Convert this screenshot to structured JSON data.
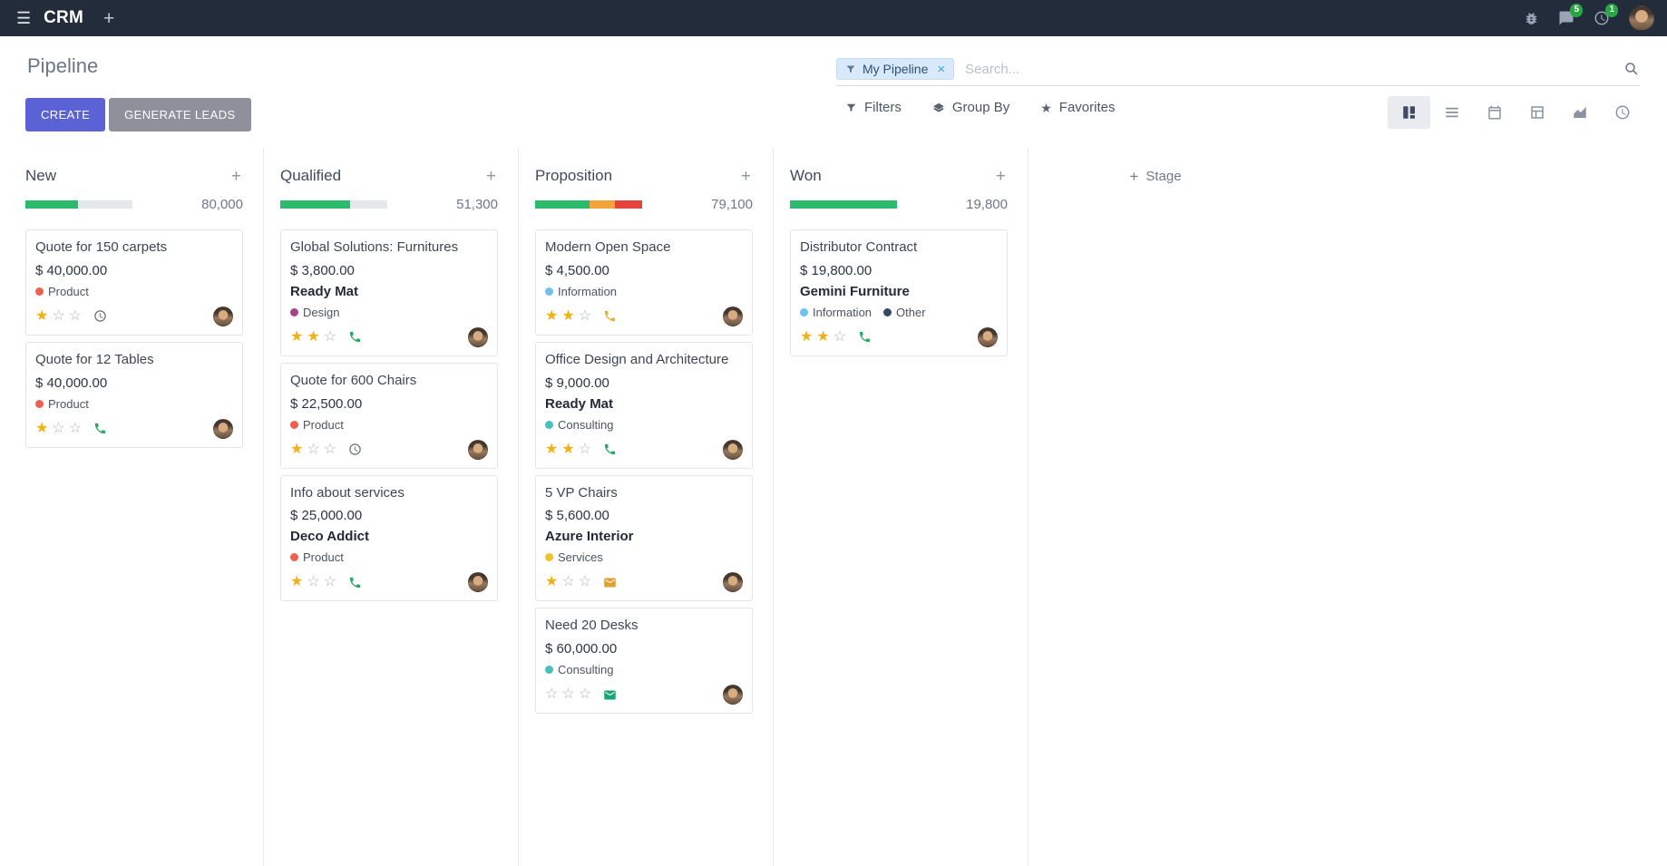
{
  "colors": {
    "accent": "#5b62d6",
    "secondary_button": "#8e919b",
    "navbar_bg": "#222c3a",
    "success": "#2cba6c",
    "warning": "#f2a33a",
    "danger": "#e5443d",
    "progress_track": "#e5e8eb",
    "star_gold": "#f3b012",
    "badge_green": "#28a745",
    "facet_bg": "#d8eafa"
  },
  "icons": {
    "menu": "☰",
    "plus": "+",
    "facet_remove": "×",
    "add_column": "+",
    "star_filled": "★",
    "star_empty": "☆"
  },
  "navbar": {
    "app_name": "CRM",
    "messages_badge": "5",
    "activities_badge": "1"
  },
  "control_panel": {
    "title": "Pipeline",
    "search": {
      "facet_label": "My Pipeline",
      "placeholder": "Search..."
    },
    "buttons": {
      "create": "CREATE",
      "generate_leads": "GENERATE LEADS"
    },
    "filters_label": "Filters",
    "group_by_label": "Group By",
    "favorites_label": "Favorites",
    "views": [
      "kanban",
      "list",
      "calendar",
      "pivot",
      "graph",
      "activity"
    ],
    "active_view": "kanban"
  },
  "board": {
    "add_stage_label": "Stage",
    "columns": [
      {
        "name": "New",
        "total": "80,000",
        "progress": [
          {
            "color": "success",
            "pct": 49
          }
        ],
        "cards": [
          {
            "title": "Quote for 150 carpets",
            "amount": "$ 40,000.00",
            "tags": [
              {
                "label": "Product",
                "color": "#f06050"
              }
            ],
            "stars": 1,
            "activity": {
              "type": "clock",
              "color": "#6a7075"
            }
          },
          {
            "title": "Quote for 12 Tables",
            "amount": "$ 40,000.00",
            "tags": [
              {
                "label": "Product",
                "color": "#f06050"
              }
            ],
            "stars": 1,
            "activity": {
              "type": "phone",
              "color": "#2aa85e"
            }
          }
        ]
      },
      {
        "name": "Qualified",
        "total": "51,300",
        "progress": [
          {
            "color": "success",
            "pct": 65
          }
        ],
        "cards": [
          {
            "title": "Global Solutions: Furnitures",
            "amount": "$ 3,800.00",
            "partner": "Ready Mat",
            "tags": [
              {
                "label": "Design",
                "color": "#a24689"
              }
            ],
            "stars": 2,
            "activity": {
              "type": "phone",
              "color": "#2aa85e"
            }
          },
          {
            "title": "Quote for 600 Chairs",
            "amount": "$ 22,500.00",
            "tags": [
              {
                "label": "Product",
                "color": "#f06050"
              }
            ],
            "stars": 1,
            "activity": {
              "type": "clock",
              "color": "#6a7075"
            }
          },
          {
            "title": "Info about services",
            "amount": "$ 25,000.00",
            "partner": "Deco Addict",
            "tags": [
              {
                "label": "Product",
                "color": "#f06050"
              }
            ],
            "stars": 1,
            "activity": {
              "type": "phone",
              "color": "#2aa85e"
            }
          }
        ]
      },
      {
        "name": "Proposition",
        "total": "79,100",
        "progress": [
          {
            "color": "success",
            "pct": 51
          },
          {
            "color": "warning",
            "pct": 24
          },
          {
            "color": "danger",
            "pct": 25
          }
        ],
        "cards": [
          {
            "title": "Modern Open Space",
            "amount": "$ 4,500.00",
            "tags": [
              {
                "label": "Information",
                "color": "#6cc1ed"
              }
            ],
            "stars": 2,
            "activity": {
              "type": "phone",
              "color": "#e9b02e"
            }
          },
          {
            "title": "Office Design and Architecture",
            "amount": "$ 9,000.00",
            "partner": "Ready Mat",
            "tags": [
              {
                "label": "Consulting",
                "color": "#45c2bb"
              }
            ],
            "stars": 2,
            "activity": {
              "type": "phone",
              "color": "#2aa85e"
            }
          },
          {
            "title": "5 VP Chairs",
            "amount": "$ 5,600.00",
            "partner": "Azure Interior",
            "tags": [
              {
                "label": "Services",
                "color": "#f0c02e"
              }
            ],
            "stars": 1,
            "activity": {
              "type": "mail",
              "color": "#e0a22e"
            }
          },
          {
            "title": "Need 20 Desks",
            "amount": "$ 60,000.00",
            "tags": [
              {
                "label": "Consulting",
                "color": "#45c2bb"
              }
            ],
            "stars": 0,
            "activity": {
              "type": "mail",
              "color": "#18a673"
            }
          }
        ]
      },
      {
        "name": "Won",
        "total": "19,800",
        "progress": [
          {
            "color": "success",
            "pct": 100
          }
        ],
        "cards": [
          {
            "title": "Distributor Contract",
            "amount": "$ 19,800.00",
            "partner": "Gemini Furniture",
            "tags": [
              {
                "label": "Information",
                "color": "#6cc1ed"
              },
              {
                "label": "Other",
                "color": "#354a5f"
              }
            ],
            "stars": 2,
            "activity": {
              "type": "phone",
              "color": "#2aa85e"
            }
          }
        ]
      }
    ]
  }
}
